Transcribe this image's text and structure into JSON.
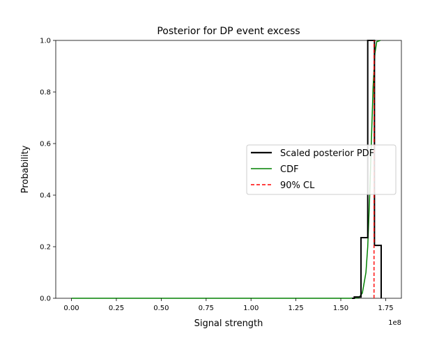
{
  "chart_data": {
    "type": "line",
    "title": "Posterior for DP event excess",
    "xlabel": "Signal strength",
    "ylabel": "Probability",
    "x_offset_label": "1e8",
    "xlim": [
      -0.0875,
      1.8375
    ],
    "ylim": [
      0.0,
      1.0
    ],
    "x_ticks": [
      0.0,
      0.25,
      0.5,
      0.75,
      1.0,
      1.25,
      1.5,
      1.75
    ],
    "x_tick_labels": [
      "0.00",
      "0.25",
      "0.50",
      "0.75",
      "1.00",
      "1.25",
      "1.50",
      "1.75"
    ],
    "y_ticks": [
      0.0,
      0.2,
      0.4,
      0.6,
      0.8,
      1.0
    ],
    "y_tick_labels": [
      "0.0",
      "0.2",
      "0.4",
      "0.6",
      "0.8",
      "1.0"
    ],
    "grid": false,
    "legend_placement": "center-right",
    "series": [
      {
        "name": "Scaled posterior PDF",
        "kind": "step",
        "color": "#000000",
        "bin_edges": [
          1.575,
          1.6125,
          1.65,
          1.6875,
          1.725
        ],
        "values": [
          0.005,
          0.235,
          1.0,
          0.205
        ]
      },
      {
        "name": "CDF",
        "kind": "line",
        "color": "#008000",
        "x": [
          0.0,
          1.55,
          1.6,
          1.62,
          1.64,
          1.65,
          1.66,
          1.67,
          1.68,
          1.69,
          1.7,
          1.72
        ],
        "y": [
          0.0,
          0.0,
          0.002,
          0.02,
          0.1,
          0.2,
          0.38,
          0.6,
          0.82,
          0.95,
          0.995,
          1.0
        ]
      },
      {
        "name": "90% CL",
        "kind": "vline",
        "color": "#ff0000",
        "x": 1.685
      }
    ]
  }
}
